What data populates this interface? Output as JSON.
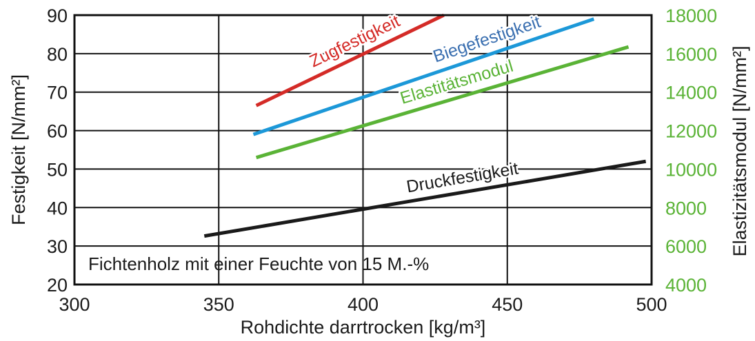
{
  "chart_data": {
    "type": "line",
    "x": {
      "label": "Rohdichte darrtrocken [kg/m³]",
      "lim": [
        300,
        500
      ],
      "ticks": [
        300,
        350,
        400,
        450,
        500
      ]
    },
    "y_left": {
      "label": "Festigkeit [N/mm²]",
      "lim": [
        20,
        90
      ],
      "ticks": [
        20,
        30,
        40,
        50,
        60,
        70,
        80,
        90
      ]
    },
    "y_right": {
      "label": "Elastizitätsmodul [N/mm²]",
      "lim": [
        4000,
        18000
      ],
      "ticks": [
        4000,
        6000,
        8000,
        10000,
        12000,
        14000,
        16000,
        18000
      ],
      "color": "#5ab336"
    },
    "grid": true,
    "annotation": "Fichtenholz mit einer Feuchte von 15 M.-%",
    "series": [
      {
        "name": "Zugfestigkeit",
        "axis": "left",
        "color": "#d42b27",
        "x": [
          363,
          428
        ],
        "y": [
          66.5,
          90
        ]
      },
      {
        "name": "Biegefestigkeit",
        "axis": "left",
        "color": "#1c98d8",
        "x": [
          362,
          480
        ],
        "y": [
          59,
          89
        ]
      },
      {
        "name": "Elastitätsmodul",
        "axis": "right",
        "color": "#5ab336",
        "label_color": "#5ab336",
        "x": [
          363,
          492
        ],
        "y": [
          10600,
          16350
        ]
      },
      {
        "name": "Druckfestigkeit",
        "axis": "left",
        "color": "#1a1a1a",
        "x": [
          345,
          498
        ],
        "y": [
          32.6,
          52
        ]
      }
    ]
  }
}
